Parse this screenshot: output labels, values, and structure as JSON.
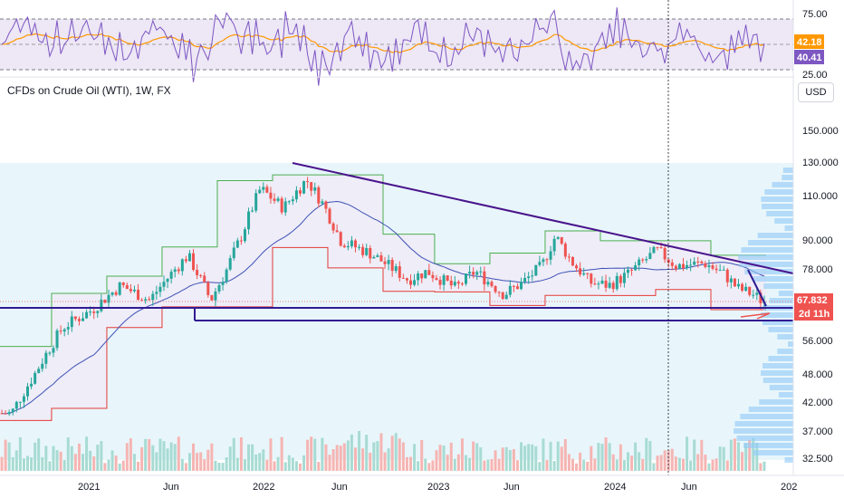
{
  "header": {
    "title": "CFDs on Crude Oil (WTI), 1W, FX",
    "currency_button": "USD"
  },
  "colors": {
    "up": "#26a69a",
    "down": "#ef5350",
    "trend": "#5b2c9e",
    "rsi": "#7e57c2",
    "rsi_ma": "#ff9800",
    "ma_line": "#3f51b5"
  },
  "rsi_panel": {
    "levels": [
      "75.00",
      "25.00"
    ],
    "badge_ma": "42.18",
    "badge_rsi": "40.41",
    "badge_ma_color": "#ff9800",
    "badge_rsi_color": "#7e57c2"
  },
  "price_axis": {
    "ticks": [
      "150.000",
      "130.000",
      "110.000",
      "90.000",
      "78.000",
      "56.000",
      "48.000",
      "42.000",
      "37.000",
      "32.500"
    ]
  },
  "last_price": {
    "value": "67.832",
    "countdown": "2d 11h"
  },
  "time_axis": {
    "ticks": [
      "2021",
      "Jun",
      "2022",
      "Jun",
      "2023",
      "Jun",
      "2024",
      "Jun",
      "202"
    ]
  },
  "chart_data": {
    "type": "candlestick",
    "symbol": "CFDs on Crude Oil (WTI)",
    "interval": "1W",
    "y_scale": "log",
    "price_path": [
      [
        2020.88,
        40
      ],
      [
        2021.0,
        48
      ],
      [
        2021.15,
        60
      ],
      [
        2021.3,
        65
      ],
      [
        2021.45,
        73
      ],
      [
        2021.6,
        68
      ],
      [
        2021.8,
        84
      ],
      [
        2021.92,
        68
      ],
      [
        2022.0,
        78
      ],
      [
        2022.08,
        92
      ],
      [
        2022.18,
        115
      ],
      [
        2022.3,
        105
      ],
      [
        2022.42,
        120
      ],
      [
        2022.5,
        108
      ],
      [
        2022.6,
        90
      ],
      [
        2022.75,
        85
      ],
      [
        2022.85,
        80
      ],
      [
        2022.95,
        75
      ],
      [
        2023.05,
        78
      ],
      [
        2023.2,
        72
      ],
      [
        2023.3,
        78
      ],
      [
        2023.45,
        70
      ],
      [
        2023.55,
        74
      ],
      [
        2023.65,
        80
      ],
      [
        2023.72,
        92
      ],
      [
        2023.8,
        82
      ],
      [
        2023.9,
        74
      ],
      [
        2024.0,
        73
      ],
      [
        2024.1,
        77
      ],
      [
        2024.25,
        86
      ],
      [
        2024.35,
        80
      ],
      [
        2024.5,
        81
      ],
      [
        2024.6,
        77
      ],
      [
        2024.67,
        72
      ],
      [
        2024.75,
        70
      ],
      [
        2024.8,
        67.832
      ]
    ],
    "last_price": 67.832,
    "rsi_levels": [
      75,
      25
    ],
    "rsi_last": 40.41,
    "rsi_ma_last": 42.18,
    "price_ticks": [
      150,
      130,
      110,
      90,
      78,
      56,
      48,
      42,
      37,
      32.5
    ],
    "time_ticks": [
      "2021",
      "Jun",
      "2022",
      "Jun",
      "2023",
      "Jun",
      "2024",
      "Jun",
      "202"
    ]
  }
}
